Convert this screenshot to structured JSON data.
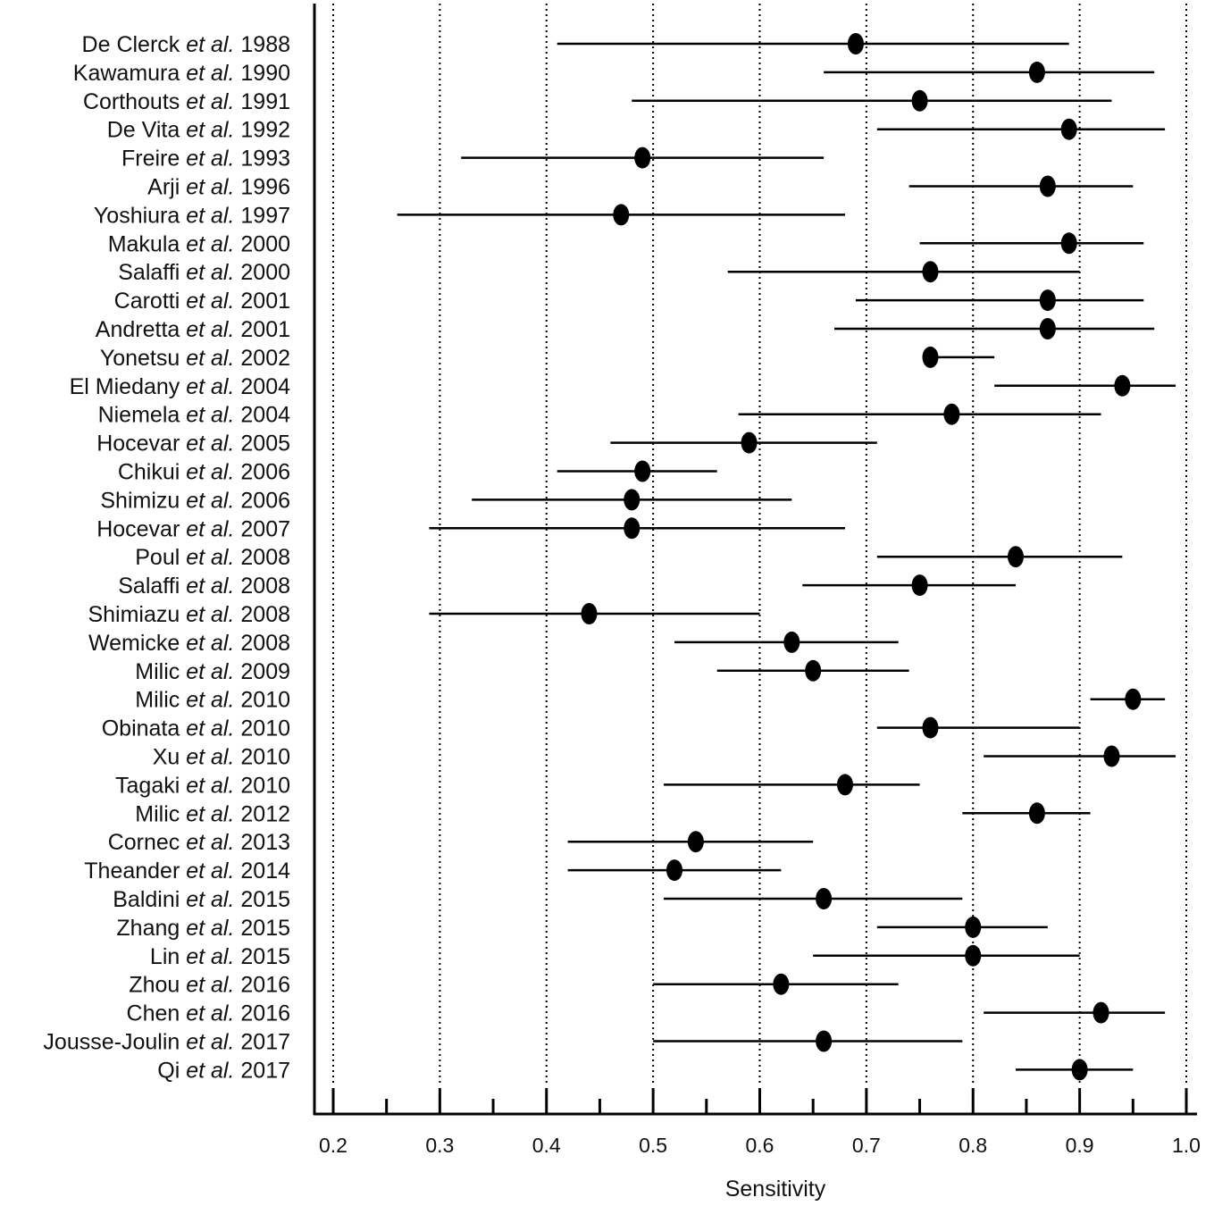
{
  "chart_data": {
    "type": "forest",
    "xlabel": "Sensitivity",
    "xlim": [
      0.18,
      1.0
    ],
    "major_ticks": [
      0.2,
      0.3,
      0.4,
      0.5,
      0.6,
      0.7,
      0.8,
      0.9,
      1.0
    ],
    "tick_labels": [
      "0.2",
      "0.3",
      "0.4",
      "0.5",
      "0.6",
      "0.7",
      "0.8",
      "0.9",
      "1.0"
    ],
    "minor_ticks": [
      0.25,
      0.35,
      0.45,
      0.55,
      0.65,
      0.75,
      0.85,
      0.95
    ],
    "grid": "vertical-dotted",
    "studies": [
      {
        "name": "De Clerck",
        "etal": "et al.",
        "year": "1988",
        "point": 0.69,
        "lower": 0.41,
        "upper": 0.89
      },
      {
        "name": "Kawamura",
        "etal": "et al.",
        "year": "1990",
        "point": 0.86,
        "lower": 0.66,
        "upper": 0.97
      },
      {
        "name": "Corthouts",
        "etal": "et al.",
        "year": "1991",
        "point": 0.75,
        "lower": 0.48,
        "upper": 0.93
      },
      {
        "name": "De Vita",
        "etal": "et al.",
        "year": "1992",
        "point": 0.89,
        "lower": 0.71,
        "upper": 0.98
      },
      {
        "name": "Freire",
        "etal": "et al.",
        "year": "1993",
        "point": 0.49,
        "lower": 0.32,
        "upper": 0.66
      },
      {
        "name": "Arji",
        "etal": "et al.",
        "year": "1996",
        "point": 0.87,
        "lower": 0.74,
        "upper": 0.95
      },
      {
        "name": "Yoshiura",
        "etal": "et al.",
        "year": "1997",
        "point": 0.47,
        "lower": 0.26,
        "upper": 0.68
      },
      {
        "name": "Makula",
        "etal": "et al.",
        "year": "2000",
        "point": 0.89,
        "lower": 0.75,
        "upper": 0.96
      },
      {
        "name": "Salaffi",
        "etal": "et al.",
        "year": "2000",
        "point": 0.76,
        "lower": 0.57,
        "upper": 0.9
      },
      {
        "name": "Carotti",
        "etal": "et al.",
        "year": "2001",
        "point": 0.87,
        "lower": 0.69,
        "upper": 0.96
      },
      {
        "name": "Andretta",
        "etal": "et al.",
        "year": "2001",
        "point": 0.87,
        "lower": 0.67,
        "upper": 0.97
      },
      {
        "name": "Yonetsu",
        "etal": "et al.",
        "year": "2002",
        "point": 0.76,
        "lower": 0.76,
        "upper": 0.82
      },
      {
        "name": "El Miedany",
        "etal": "et al.",
        "year": "2004",
        "point": 0.94,
        "lower": 0.82,
        "upper": 0.99
      },
      {
        "name": "Niemela",
        "etal": "et al.",
        "year": "2004",
        "point": 0.78,
        "lower": 0.58,
        "upper": 0.92
      },
      {
        "name": "Hocevar",
        "etal": "et al.",
        "year": "2005",
        "point": 0.59,
        "lower": 0.46,
        "upper": 0.71
      },
      {
        "name": "Chikui",
        "etal": "et al.",
        "year": "2006",
        "point": 0.49,
        "lower": 0.41,
        "upper": 0.56
      },
      {
        "name": "Shimizu",
        "etal": "et al.",
        "year": "2006",
        "point": 0.48,
        "lower": 0.33,
        "upper": 0.63
      },
      {
        "name": "Hocevar",
        "etal": "et al.",
        "year": "2007",
        "point": 0.48,
        "lower": 0.29,
        "upper": 0.68
      },
      {
        "name": "Poul",
        "etal": "et al.",
        "year": "2008",
        "point": 0.84,
        "lower": 0.71,
        "upper": 0.94
      },
      {
        "name": "Salaffi",
        "etal": "et al.",
        "year": "2008",
        "point": 0.75,
        "lower": 0.64,
        "upper": 0.84
      },
      {
        "name": "Shimiazu",
        "etal": "et al.",
        "year": "2008",
        "point": 0.44,
        "lower": 0.29,
        "upper": 0.6
      },
      {
        "name": "Wemicke",
        "etal": "et al.",
        "year": "2008",
        "point": 0.63,
        "lower": 0.52,
        "upper": 0.73
      },
      {
        "name": "Milic",
        "etal": "et al.",
        "year": "2009",
        "point": 0.65,
        "lower": 0.56,
        "upper": 0.74
      },
      {
        "name": "Milic",
        "etal": "et al.",
        "year": "2010",
        "point": 0.95,
        "lower": 0.91,
        "upper": 0.98
      },
      {
        "name": "Obinata",
        "etal": "et al.",
        "year": "2010",
        "point": 0.76,
        "lower": 0.71,
        "upper": 0.9
      },
      {
        "name": "Xu",
        "etal": "et al.",
        "year": "2010",
        "point": 0.93,
        "lower": 0.81,
        "upper": 0.99
      },
      {
        "name": "Tagaki",
        "etal": "et al.",
        "year": "2010",
        "point": 0.68,
        "lower": 0.51,
        "upper": 0.75
      },
      {
        "name": "Milic",
        "etal": "et al.",
        "year": "2012",
        "point": 0.86,
        "lower": 0.79,
        "upper": 0.91
      },
      {
        "name": "Cornec",
        "etal": "et al.",
        "year": "2013",
        "point": 0.54,
        "lower": 0.42,
        "upper": 0.65
      },
      {
        "name": "Theander",
        "etal": "et al.",
        "year": "2014",
        "point": 0.52,
        "lower": 0.42,
        "upper": 0.62
      },
      {
        "name": "Baldini",
        "etal": "et al.",
        "year": "2015",
        "point": 0.66,
        "lower": 0.51,
        "upper": 0.79
      },
      {
        "name": "Zhang",
        "etal": "et al.",
        "year": "2015",
        "point": 0.8,
        "lower": 0.71,
        "upper": 0.87
      },
      {
        "name": "Lin",
        "etal": "et al.",
        "year": "2015",
        "point": 0.8,
        "lower": 0.65,
        "upper": 0.9
      },
      {
        "name": "Zhou",
        "etal": "et al.",
        "year": "2016",
        "point": 0.62,
        "lower": 0.5,
        "upper": 0.73
      },
      {
        "name": "Chen",
        "etal": "et al.",
        "year": "2016",
        "point": 0.92,
        "lower": 0.81,
        "upper": 0.98
      },
      {
        "name": "Jousse-Joulin",
        "etal": "et al.",
        "year": "2017",
        "point": 0.66,
        "lower": 0.5,
        "upper": 0.79
      },
      {
        "name": "Qi",
        "etal": "et al.",
        "year": "2017",
        "point": 0.9,
        "lower": 0.84,
        "upper": 0.95
      }
    ]
  }
}
